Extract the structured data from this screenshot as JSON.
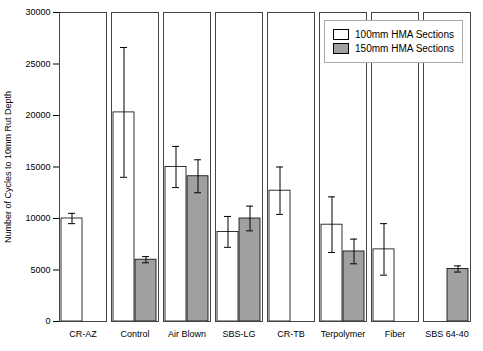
{
  "chart_data": {
    "type": "bar",
    "ylabel": "Number of Cycles to 10mm Rut Depth",
    "categories": [
      "CR-AZ",
      "Control",
      "Air Blown",
      "SBS-LG",
      "CR-TB",
      "Terpolymer",
      "Fiber",
      "SBS 64-40"
    ],
    "series": [
      {
        "name": "100mm HMA Sections",
        "color": "#FFFFFF",
        "values": [
          10000,
          20300,
          15000,
          8700,
          12700,
          9400,
          7000,
          null
        ],
        "errors": [
          500,
          6300,
          2000,
          1500,
          2300,
          2700,
          2500,
          null
        ]
      },
      {
        "name": "150mm HMA Sections",
        "color": "#A0A0A0",
        "values": [
          null,
          6000,
          14100,
          10000,
          null,
          6800,
          null,
          5100
        ],
        "errors": [
          null,
          300,
          1600,
          1200,
          null,
          1200,
          null,
          300
        ]
      }
    ],
    "ylim": [
      0,
      30000
    ],
    "yticks": [
      0,
      5000,
      10000,
      15000,
      20000,
      25000,
      30000
    ],
    "legend": "upper right"
  }
}
